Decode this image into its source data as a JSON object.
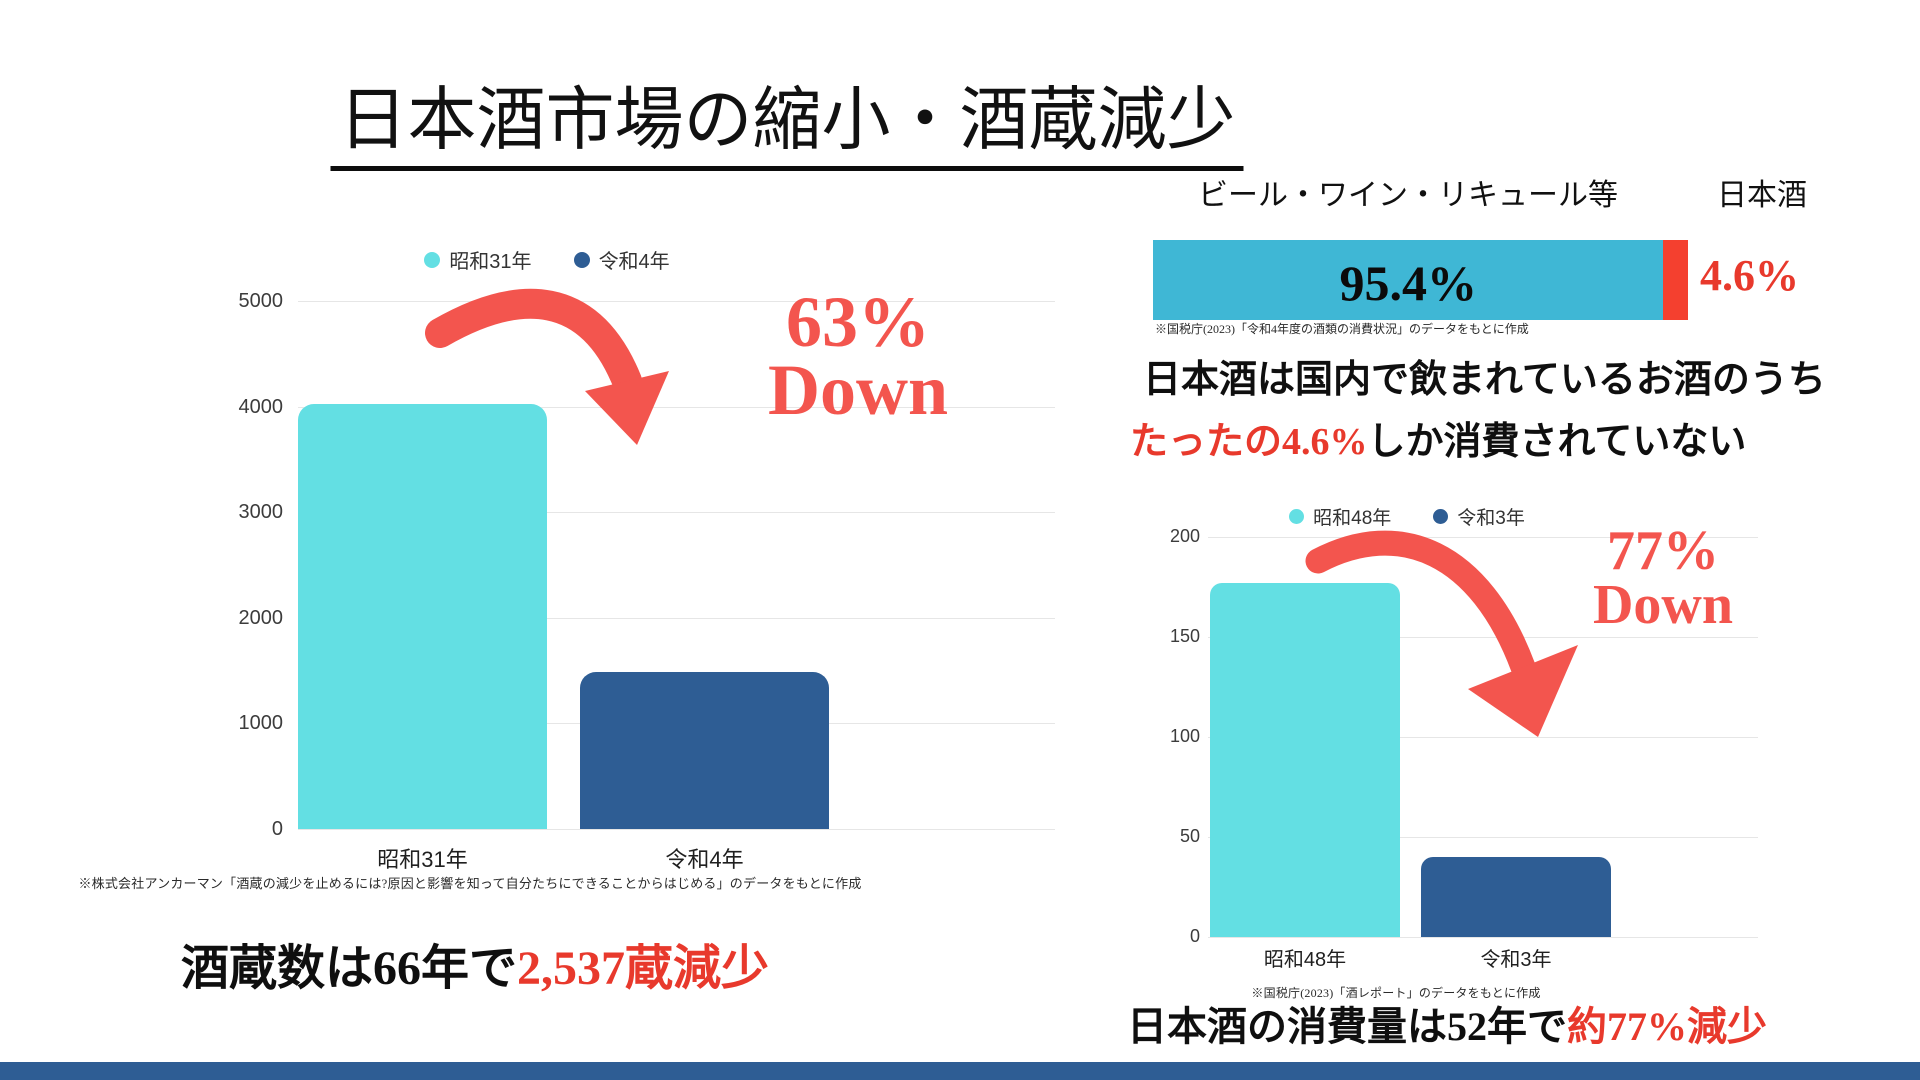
{
  "title": "日本酒市場の縮小・酒蔵減少",
  "colors": {
    "cyan": "#63DFE3",
    "navy": "#2E5D94",
    "teal": "#3FB7D5",
    "bright_red": "#F4402F",
    "accent_red": "#F3554E",
    "text_red": "#E8392C",
    "grid": "#E6E6E6"
  },
  "chart_data": [
    {
      "id": "sake-breweries",
      "type": "bar",
      "title": "",
      "categories": [
        "昭和31年",
        "令和4年"
      ],
      "values": [
        4021,
        1484
      ],
      "legend": [
        "昭和31年",
        "令和4年"
      ],
      "ylim": [
        0,
        5000
      ],
      "ytick_step": 1000,
      "grid": true,
      "legend_position": "top",
      "annotation": {
        "line1": "63%",
        "line2": "Down"
      },
      "source": "※株式会社アンカーマン「酒蔵の減少を止めるには?原因と影響を知って自分たちにできることからはじめる」のデータをもとに作成"
    },
    {
      "id": "alcohol-consumption-share",
      "type": "stacked-bar",
      "segments": [
        {
          "label": "ビール・ワイン・リキュール等",
          "value": 95.4,
          "display": "95.4%"
        },
        {
          "label": "日本酒",
          "value": 4.6,
          "display": "4.6%"
        }
      ],
      "source": "※国税庁(2023)「令和4年度の酒類の消費状況」のデータをもとに作成"
    },
    {
      "id": "sake-consumption",
      "type": "bar",
      "title": "",
      "categories": [
        "昭和48年",
        "令和3年"
      ],
      "values": [
        177,
        40
      ],
      "legend": [
        "昭和48年",
        "令和3年"
      ],
      "ylim": [
        0,
        200
      ],
      "ytick_step": 50,
      "grid": true,
      "legend_position": "top",
      "annotation": {
        "line1": "77%",
        "line2": "Down"
      },
      "source": "※国税庁(2023)「酒レポート」のデータをもとに作成"
    }
  ],
  "statements": {
    "breweries": {
      "black": "酒蔵数は66年で",
      "red": "2,537蔵減少"
    },
    "share_line1": "日本酒は国内で飲まれているお酒のうち",
    "share_line2": {
      "red": "たったの4.6%",
      "black": "しか消費されていない"
    },
    "consumption": {
      "black": "日本酒の消費量は52年で",
      "red": "約77%減少"
    }
  }
}
